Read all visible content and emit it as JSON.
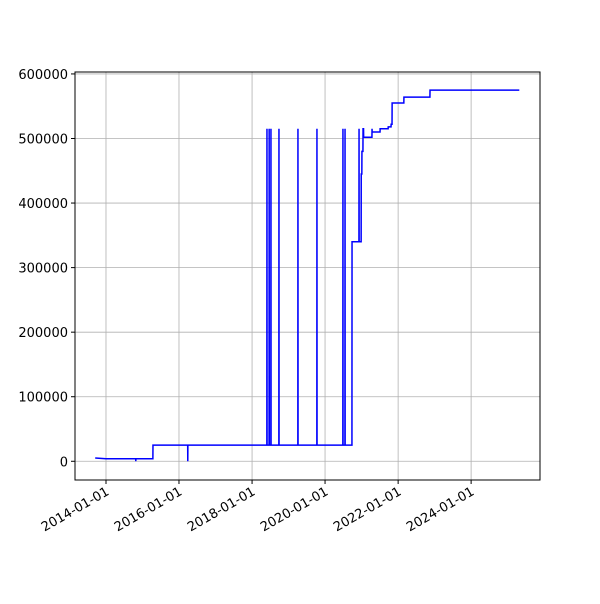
{
  "chart_data": {
    "type": "line",
    "color": "#0000ff",
    "grid": true,
    "x": [
      "2013-09-15",
      "2014-01-01",
      "2014-10-25",
      "2014-10-26",
      "2014-10-27",
      "2015-04-15",
      "2015-04-16",
      "2016-03-28",
      "2016-03-29",
      "2016-03-30",
      "2018-05-29",
      "2018-05-30",
      "2018-05-31",
      "2018-06-20",
      "2018-06-21",
      "2018-06-22",
      "2018-07-08",
      "2018-07-09",
      "2018-07-10",
      "2018-09-26",
      "2018-09-27",
      "2018-09-28",
      "2019-04-04",
      "2019-04-05",
      "2019-04-06",
      "2019-10-11",
      "2019-10-12",
      "2019-10-13",
      "2020-06-27",
      "2020-06-28",
      "2020-06-29",
      "2020-07-18",
      "2020-07-19",
      "2020-07-20",
      "2020-09-26",
      "2020-09-27",
      "2020-12-05",
      "2020-12-06",
      "2020-12-07",
      "2020-12-27",
      "2020-12-28",
      "2021-01-03",
      "2021-01-04",
      "2021-01-14",
      "2021-01-15",
      "2021-01-20",
      "2021-01-21",
      "2021-04-14",
      "2021-04-15",
      "2021-04-16",
      "2021-07-04",
      "2021-07-05",
      "2021-09-23",
      "2021-09-24",
      "2021-10-22",
      "2021-10-23",
      "2021-11-01",
      "2021-11-02",
      "2022-02-27",
      "2022-02-28",
      "2022-11-15",
      "2022-11-16",
      "2025-04-27"
    ],
    "values": [
      5000,
      4000,
      4000,
      0,
      4000,
      4000,
      25000,
      25000,
      0,
      25000,
      25000,
      515000,
      25000,
      25000,
      515000,
      25000,
      25000,
      515000,
      25000,
      25000,
      515000,
      25000,
      25000,
      515000,
      25000,
      25000,
      515000,
      25000,
      25000,
      515000,
      25000,
      25000,
      515000,
      25000,
      25000,
      340000,
      340000,
      515000,
      340000,
      340000,
      445000,
      445000,
      480000,
      480000,
      515000,
      515000,
      502000,
      502000,
      515000,
      510000,
      510000,
      515000,
      515000,
      518000,
      518000,
      522000,
      522000,
      555000,
      555000,
      564000,
      564000,
      575000,
      575000
    ],
    "xlim": [
      "2013-02-25",
      "2025-11-20"
    ],
    "xticks": [
      "2014-01-01",
      "2016-01-01",
      "2018-01-01",
      "2020-01-01",
      "2022-01-01",
      "2024-01-01"
    ],
    "ylim": [
      -29000,
      603000
    ],
    "yticks": [
      0,
      100000,
      200000,
      300000,
      400000,
      500000,
      600000
    ]
  }
}
